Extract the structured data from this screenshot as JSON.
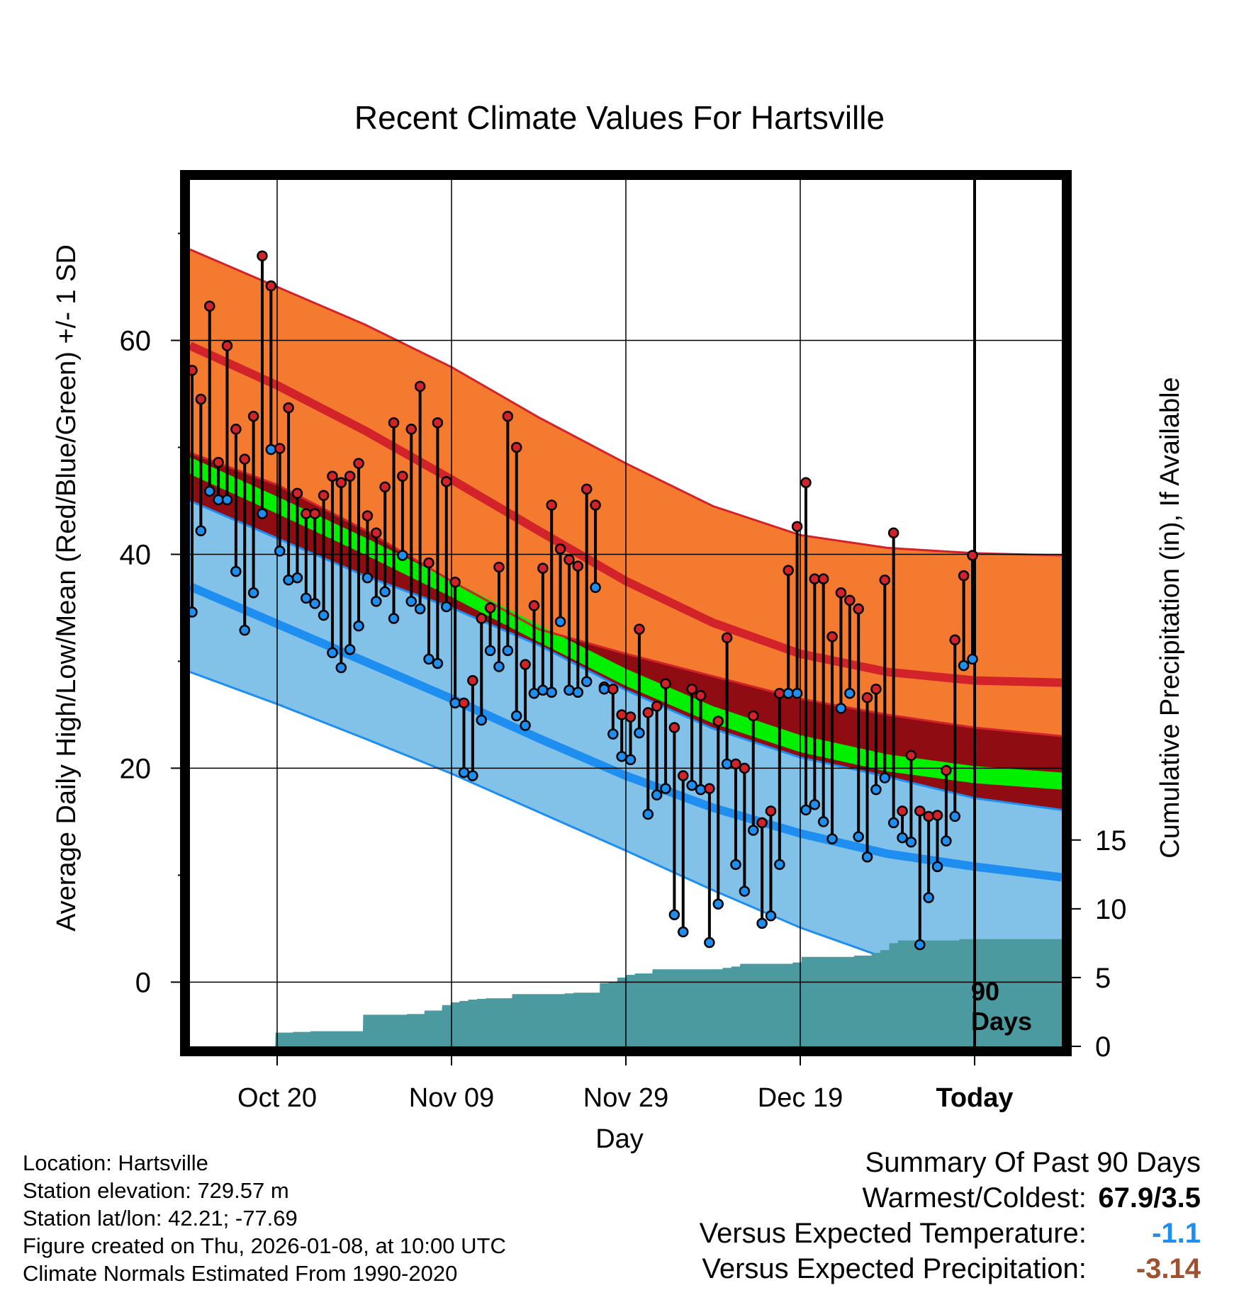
{
  "chart_data": {
    "type": "line",
    "title": "Recent Climate Values For Hartsville",
    "xlabel": "Day",
    "ylabel": "Average Daily High/Low/Mean (Red/Blue/Green) +/- 1 SD",
    "y2label": "Cumulative Precipitation (in), If Available",
    "ylim": [
      -6,
      75
    ],
    "y2lim": [
      0,
      63
    ],
    "xlim": [
      0,
      100
    ],
    "yticks": [
      "0",
      "20",
      "40",
      "60"
    ],
    "yticks_values": [
      0,
      20,
      40,
      60
    ],
    "y2ticks": [
      "0",
      "5",
      "10",
      "15"
    ],
    "y2ticks_values": [
      0,
      5,
      10,
      15
    ],
    "xticks": [
      "Oct 20",
      "Nov 09",
      "Nov 29",
      "Dec 19",
      "Today"
    ],
    "xticks_values": [
      10,
      30,
      50,
      70,
      90
    ],
    "window_label": [
      "90",
      "Days"
    ],
    "grid": true,
    "colors": {
      "high_band": "#f47a30",
      "high_line": "#d2232a",
      "low_band": "#82c1e8",
      "low_line": "#1e8ef0",
      "mean_band": "#00f000",
      "overlap_band": "#8e0c12",
      "precip": "#4a9aa0",
      "high_point": "#d2232a",
      "low_point": "#1e8ef0"
    },
    "normals": {
      "x": [
        0,
        10,
        20,
        30,
        40,
        50,
        60,
        70,
        80,
        90,
        100
      ],
      "high_mean": [
        59.5,
        55.8,
        51.6,
        47.0,
        42.2,
        37.5,
        33.6,
        30.7,
        29.0,
        28.2,
        28.0
      ],
      "high_plus_sd": [
        68.5,
        65.0,
        61.5,
        57.5,
        52.8,
        48.5,
        44.5,
        41.8,
        40.6,
        40.1,
        39.9
      ],
      "high_minus_sd": [
        49.5,
        46.5,
        42.3,
        37.5,
        33.0,
        30.7,
        28.6,
        26.5,
        25.0,
        23.8,
        23.0
      ],
      "low_mean": [
        37.0,
        33.5,
        30.0,
        26.5,
        22.8,
        19.3,
        16.3,
        13.9,
        12.0,
        10.8,
        9.8
      ],
      "low_plus_sd": [
        45.0,
        41.5,
        38.0,
        35.0,
        31.5,
        27.3,
        23.7,
        21.0,
        19.2,
        17.2,
        16.1
      ],
      "low_minus_sd": [
        29.0,
        26.0,
        22.8,
        19.5,
        15.9,
        12.3,
        8.6,
        5.1,
        2.2,
        0.3,
        -0.7
      ],
      "mean": [
        48.3,
        44.6,
        40.8,
        36.8,
        32.6,
        28.5,
        25.0,
        22.3,
        20.5,
        19.4,
        18.8
      ],
      "mean_sd_halfwidth": 0.8
    },
    "observed": {
      "day": [
        0,
        1,
        2,
        3,
        4,
        5,
        6,
        7,
        8,
        9,
        10,
        11,
        12,
        13,
        14,
        15,
        16,
        17,
        18,
        19,
        20,
        21,
        22,
        23,
        24,
        25,
        26,
        27,
        28,
        29,
        30,
        31,
        32,
        33,
        34,
        35,
        36,
        37,
        38,
        39,
        40,
        41,
        42,
        43,
        44,
        45,
        46,
        47,
        48,
        49,
        50,
        51,
        52,
        53,
        54,
        55,
        56,
        57,
        58,
        59,
        60,
        61,
        62,
        63,
        64,
        65,
        66,
        67,
        68,
        69,
        70,
        71,
        72,
        73,
        74,
        75,
        76,
        77,
        78,
        79,
        80,
        81,
        82,
        83,
        84,
        85,
        86,
        87,
        88,
        89
      ],
      "high": [
        57.2,
        54.5,
        63.2,
        48.6,
        59.5,
        51.7,
        48.9,
        52.9,
        67.9,
        65.1,
        49.9,
        53.7,
        45.7,
        43.8,
        43.8,
        45.5,
        47.3,
        46.7,
        47.3,
        48.5,
        43.6,
        42.0,
        46.3,
        52.3,
        47.3,
        51.7,
        55.7,
        39.2,
        52.3,
        46.8,
        37.4,
        26.1,
        28.2,
        34.0,
        35.0,
        38.8,
        52.9,
        50.0,
        29.7,
        35.2,
        38.7,
        44.6,
        40.5,
        39.5,
        38.9,
        46.1,
        44.6,
        27.6,
        27.4,
        25.0,
        24.8,
        33.0,
        25.2,
        25.8,
        27.9,
        23.8,
        19.3,
        27.4,
        26.8,
        18.1,
        24.4,
        32.2,
        20.4,
        20.0,
        24.9,
        14.9,
        16.0,
        27.0,
        38.5,
        42.6,
        46.7,
        37.7,
        37.7,
        32.3,
        36.4,
        35.7,
        34.9,
        26.6,
        27.4,
        37.6,
        42.0,
        16.0,
        21.2,
        16.0,
        15.5,
        15.6,
        19.8,
        32.0,
        38.0,
        39.9
      ],
      "low": [
        34.6,
        42.2,
        45.9,
        45.1,
        45.1,
        38.4,
        32.9,
        36.4,
        43.8,
        49.8,
        40.3,
        37.6,
        37.8,
        35.9,
        35.4,
        34.3,
        30.8,
        29.4,
        31.1,
        33.3,
        37.8,
        35.6,
        36.5,
        34.0,
        39.9,
        35.6,
        34.9,
        30.2,
        29.8,
        35.1,
        26.1,
        19.6,
        19.3,
        24.5,
        31.0,
        29.5,
        31.0,
        24.9,
        24.0,
        27.0,
        27.3,
        27.1,
        33.7,
        27.3,
        27.1,
        28.1,
        36.9,
        27.4,
        23.2,
        21.1,
        20.8,
        23.3,
        15.7,
        17.5,
        18.1,
        6.3,
        4.7,
        18.4,
        18.0,
        3.7,
        7.3,
        20.4,
        11.0,
        8.5,
        14.2,
        5.5,
        6.2,
        11.0,
        27.0,
        27.0,
        16.1,
        16.6,
        15.0,
        13.4,
        25.6,
        27.0,
        13.6,
        11.7,
        18.0,
        19.1,
        14.9,
        13.5,
        13.1,
        3.5,
        7.9,
        10.8,
        13.2,
        15.5,
        29.6,
        30.2
      ],
      "precip_cumulative": [
        0,
        0,
        0,
        0,
        0,
        0,
        0,
        0,
        0,
        0,
        1.0,
        1.0,
        1.05,
        1.05,
        1.1,
        1.1,
        1.1,
        1.1,
        1.1,
        1.1,
        2.3,
        2.3,
        2.3,
        2.3,
        2.3,
        2.35,
        2.35,
        2.6,
        2.6,
        3.0,
        3.2,
        3.3,
        3.4,
        3.45,
        3.5,
        3.5,
        3.5,
        3.8,
        3.8,
        3.8,
        3.8,
        3.8,
        3.8,
        3.85,
        3.9,
        3.9,
        3.9,
        4.6,
        4.7,
        5.0,
        5.2,
        5.3,
        5.3,
        5.6,
        5.6,
        5.6,
        5.6,
        5.6,
        5.6,
        5.6,
        5.6,
        5.7,
        5.8,
        6.0,
        6.0,
        6.0,
        6.0,
        6.0,
        6.0,
        6.1,
        6.5,
        6.5,
        6.5,
        6.5,
        6.5,
        6.5,
        6.6,
        6.6,
        6.8,
        7.0,
        7.5,
        7.7,
        7.7,
        7.7,
        7.7,
        7.7,
        7.7,
        7.7,
        7.8,
        7.8
      ]
    }
  },
  "info": {
    "location": "Location: Hartsville",
    "elevation": "Station elevation: 729.57 m",
    "latlon": "Station lat/lon: 42.21; -77.69",
    "created": "Figure created on Thu, 2026-01-08, at 10:00 UTC",
    "normals": "Climate Normals Estimated From 1990-2020"
  },
  "summary": {
    "title": "Summary Of Past 90 Days",
    "warm_cold_label": "Warmest/Coldest:",
    "warm_cold_value": "67.9/3.5",
    "temp_label": "Versus Expected Temperature:",
    "temp_value": "-1.1",
    "temp_color": "#1e8ef0",
    "precip_label": "Versus Expected Precipitation:",
    "precip_value": "-3.14",
    "precip_color": "#a0522d"
  }
}
